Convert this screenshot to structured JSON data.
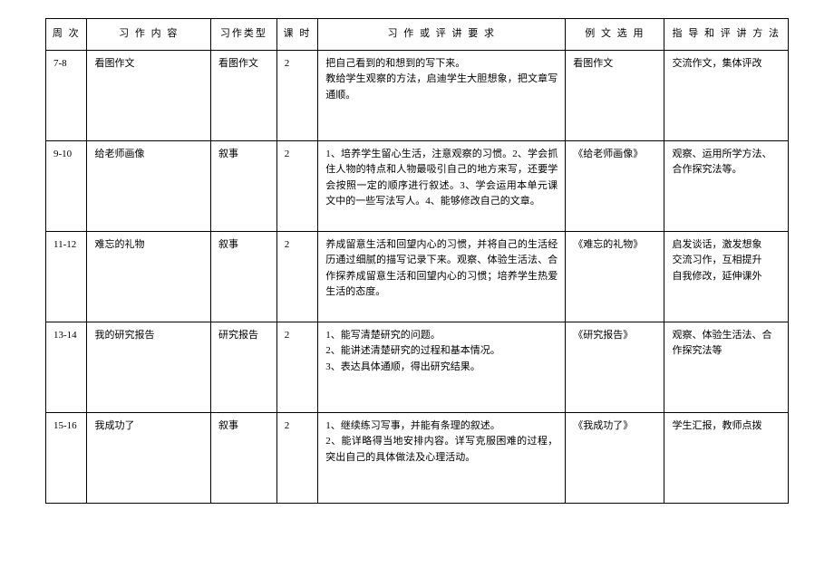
{
  "headers": {
    "week": "周 次",
    "content": "习 作 内 容",
    "type": "习作类型",
    "hours": "课 时",
    "requirements": "习 作 或 评 讲 要 求",
    "example": "例 文 选 用",
    "method": "指 导 和 评 讲 方 法"
  },
  "rows": [
    {
      "week": "7-8",
      "content": "看图作文",
      "type": "看图作文",
      "hours": "2",
      "requirements": "把自己看到的和想到的写下来。\n教给学生观察的方法，启迪学生大胆想象，把文章写通顺。",
      "example": "看图作文",
      "method": "交流作文，集体评改"
    },
    {
      "week": "9-10",
      "content": "给老师画像",
      "type": "叙事",
      "hours": "2",
      "requirements": "1、培养学生留心生活，注意观察的习惯。2、学会抓住人物的特点和人物最吸引自己的地方来写，还要学会按照一定的顺序进行叙述。3、学会运用本单元课文中的一些写法写人。4、能够修改自己的文章。",
      "example": "《给老师画像》",
      "method": "观察、运用所学方法、合作探究法等。"
    },
    {
      "week": "11-12",
      "content": "难忘的礼物",
      "type": "叙事",
      "hours": "2",
      "requirements": "养成留意生活和回望内心的习惯，并将自己的生活经历通过细腻的描写记录下来。观察、体验生活法、合作探养成留意生活和回望内心的习惯；培养学生热爱生活的态度。",
      "example": "《难忘的礼物》",
      "method": "启发谈话，激发想象\n交流习作，互相提升\n自我修改，延伸课外"
    },
    {
      "week": "13-14",
      "content": "我的研究报告",
      "type": "研究报告",
      "hours": "2",
      "requirements": "1、能写清楚研究的问题。\n2、能讲述清楚研究的过程和基本情况。\n3、表达具体通顺，得出研究结果。",
      "example": "《研究报告》",
      "method": "观察、体验生活法、合作探究法等"
    },
    {
      "week": "15-16",
      "content": "我成功了",
      "type": "叙事",
      "hours": "2",
      "requirements": "1、继续练习写事，并能有条理的叙述。\n2、能详略得当地安排内容。详写克服困难的过程，突出自己的具体做法及心理活动。",
      "example": "《我成功了》",
      "method": "学生汇报，教师点拨"
    }
  ]
}
